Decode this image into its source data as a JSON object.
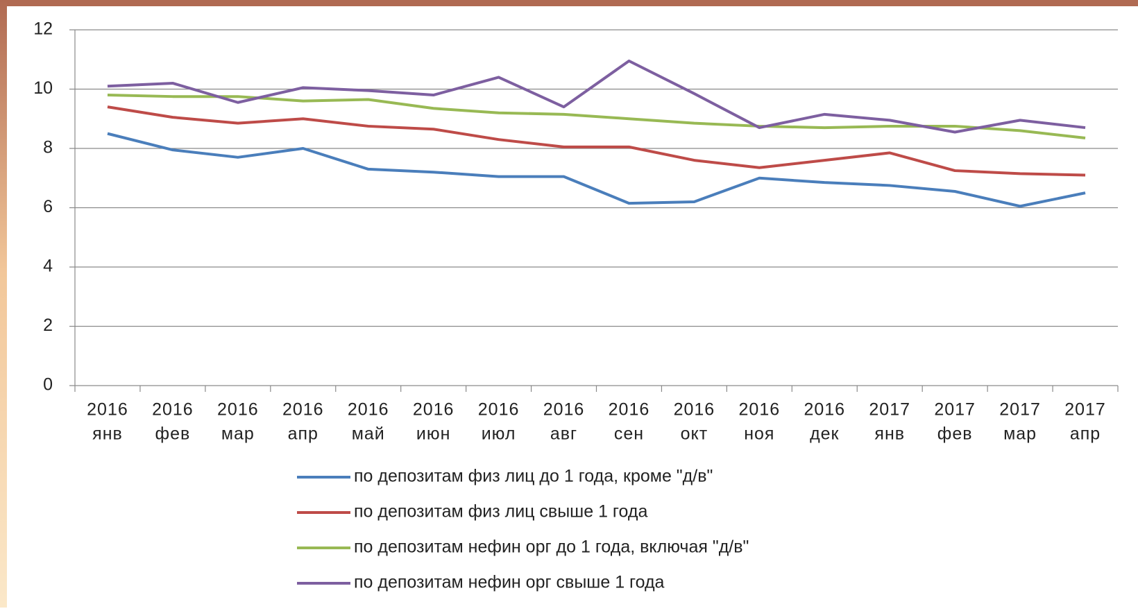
{
  "chart_data": {
    "type": "line",
    "categories": [
      [
        "2016",
        "янв"
      ],
      [
        "2016",
        "фев"
      ],
      [
        "2016",
        "мар"
      ],
      [
        "2016",
        "апр"
      ],
      [
        "2016",
        "май"
      ],
      [
        "2016",
        "июн"
      ],
      [
        "2016",
        "июл"
      ],
      [
        "2016",
        "авг"
      ],
      [
        "2016",
        "сен"
      ],
      [
        "2016",
        "окт"
      ],
      [
        "2016",
        "ноя"
      ],
      [
        "2016",
        "дек"
      ],
      [
        "2017",
        "янв"
      ],
      [
        "2017",
        "фев"
      ],
      [
        "2017",
        "мар"
      ],
      [
        "2017",
        "апр"
      ]
    ],
    "series": [
      {
        "name": "по депозитам физ лиц до 1 года, кроме \"д/в\"",
        "color": "#4a7ebb",
        "values": [
          8.5,
          7.95,
          7.7,
          8.0,
          7.3,
          7.2,
          7.05,
          7.05,
          6.15,
          6.2,
          7.0,
          6.85,
          6.75,
          6.55,
          6.05,
          6.5
        ]
      },
      {
        "name": "по депозитам физ лиц свыше 1 года",
        "color": "#be4b48",
        "values": [
          9.4,
          9.05,
          8.85,
          9.0,
          8.75,
          8.65,
          8.3,
          8.05,
          8.05,
          7.6,
          7.35,
          7.6,
          7.85,
          7.25,
          7.15,
          7.1
        ]
      },
      {
        "name": "по депозитам нефин орг до 1 года, включая \"д/в\"",
        "color": "#98b954",
        "values": [
          9.8,
          9.75,
          9.75,
          9.6,
          9.65,
          9.35,
          9.2,
          9.15,
          9.0,
          8.85,
          8.75,
          8.7,
          8.75,
          8.75,
          8.6,
          8.35
        ]
      },
      {
        "name": "по депозитам нефин орг свыше 1 года",
        "color": "#7d5fa0",
        "values": [
          10.1,
          10.2,
          9.55,
          10.05,
          9.95,
          9.8,
          10.4,
          9.4,
          10.95,
          9.85,
          8.7,
          9.15,
          8.95,
          8.55,
          8.95,
          8.7
        ]
      }
    ],
    "ylim": [
      0,
      12
    ],
    "yticks": [
      0,
      2,
      4,
      6,
      8,
      10,
      12
    ],
    "grid": true,
    "legend": "bottom"
  }
}
